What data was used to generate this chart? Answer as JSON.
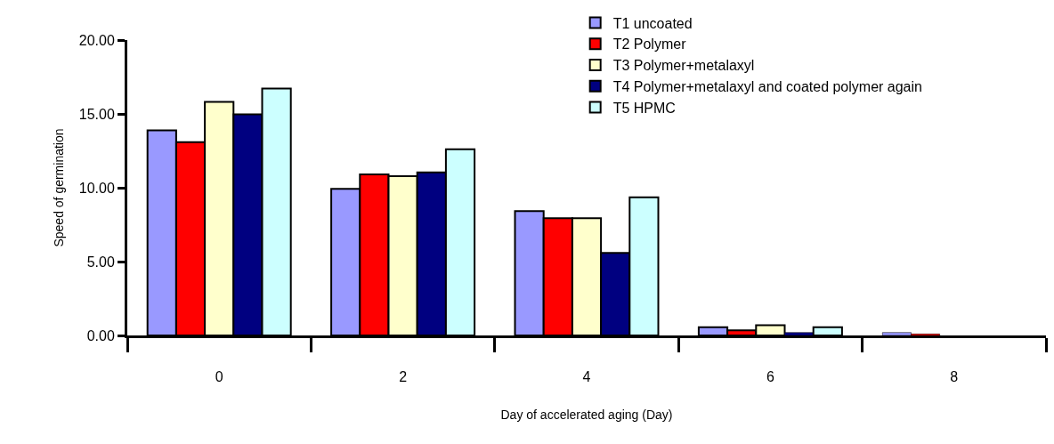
{
  "chart_data": {
    "type": "bar",
    "xlabel": "Day of accelerated aging (Day)",
    "ylabel": "Speed of germination",
    "categories": [
      "0",
      "2",
      "4",
      "6",
      "8"
    ],
    "series": [
      {
        "name": "T1 uncoated",
        "color": "#9999ff",
        "values": [
          13.88,
          9.93,
          8.42,
          0.55,
          0.2
        ]
      },
      {
        "name": "T2 Polymer",
        "color": "#ff0000",
        "values": [
          13.08,
          10.9,
          7.94,
          0.35,
          0.1
        ]
      },
      {
        "name": "T3 Polymer+metalaxyl",
        "color": "#ffffcc",
        "values": [
          15.82,
          10.78,
          7.94,
          0.7,
          0
        ]
      },
      {
        "name": "T4 Polymer+metalaxyl and coated polymer again",
        "color": "#000080",
        "values": [
          14.97,
          11.04,
          5.59,
          0.2,
          0
        ]
      },
      {
        "name": "T5 HPMC",
        "color": "#ccffff",
        "values": [
          16.72,
          12.6,
          9.35,
          0.55,
          0
        ]
      }
    ],
    "ylim": [
      0,
      20
    ],
    "yticks": [
      {
        "value": 0,
        "label": "0.00"
      },
      {
        "value": 5,
        "label": "5.00"
      },
      {
        "value": 10,
        "label": "10.00"
      },
      {
        "value": 15,
        "label": "15.00"
      },
      {
        "value": 20,
        "label": "20.00"
      }
    ],
    "grid": false,
    "legend": "top right"
  }
}
